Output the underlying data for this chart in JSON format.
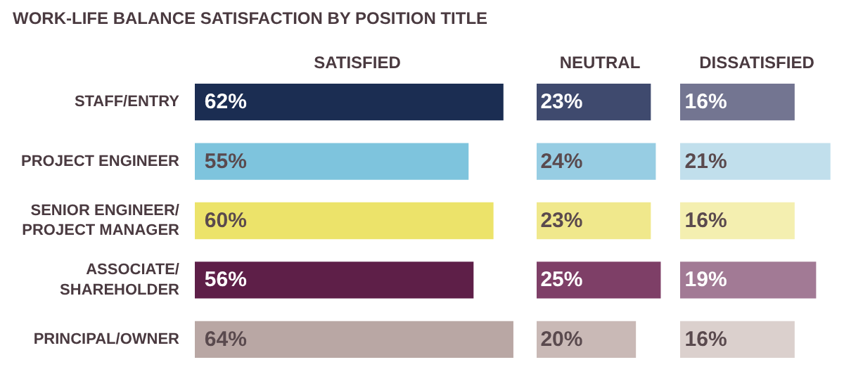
{
  "chart_data": [
    {
      "type": "bar",
      "orientation": "horizontal",
      "title": "WORK-LIFE BALANCE SATISFACTION BY POSITION TITLE",
      "xlabel": "SATISFIED",
      "categories": [
        "STAFF/ENTRY",
        "PROJECT ENGINEER",
        "SENIOR ENGINEER/\nPROJECT MANAGER",
        "ASSOCIATE/\nSHAREHOLDER",
        "PRINCIPAL/OWNER"
      ],
      "values": [
        62,
        55,
        60,
        56,
        64
      ],
      "colors": [
        "#1b2d52",
        "#7ec4dd",
        "#ece36a",
        "#5e1f48",
        "#b9a7a4"
      ],
      "value_labels": [
        "62%",
        "55%",
        "60%",
        "56%",
        "64%"
      ],
      "tick_labels": "y"
    },
    {
      "type": "bar",
      "orientation": "horizontal",
      "xlabel": "NEUTRAL",
      "values": [
        23,
        24,
        23,
        25,
        20
      ],
      "colors": [
        "#3f4a6e",
        "#97cde3",
        "#f0e88c",
        "#7e3f67",
        "#c9b9b6"
      ],
      "value_labels": [
        "23%",
        "24%",
        "23%",
        "25%",
        "20%"
      ],
      "tick_labels": false
    },
    {
      "type": "bar",
      "orientation": "horizontal",
      "xlabel": "DISSATISFIED",
      "values": [
        16,
        21,
        16,
        19,
        16
      ],
      "colors": [
        "#737591",
        "#c1dfec",
        "#f4efb0",
        "#a27a95",
        "#dbd0cd"
      ],
      "value_labels": [
        "16%",
        "21%",
        "16%",
        "19%",
        "16%"
      ],
      "tick_labels": false
    }
  ]
}
